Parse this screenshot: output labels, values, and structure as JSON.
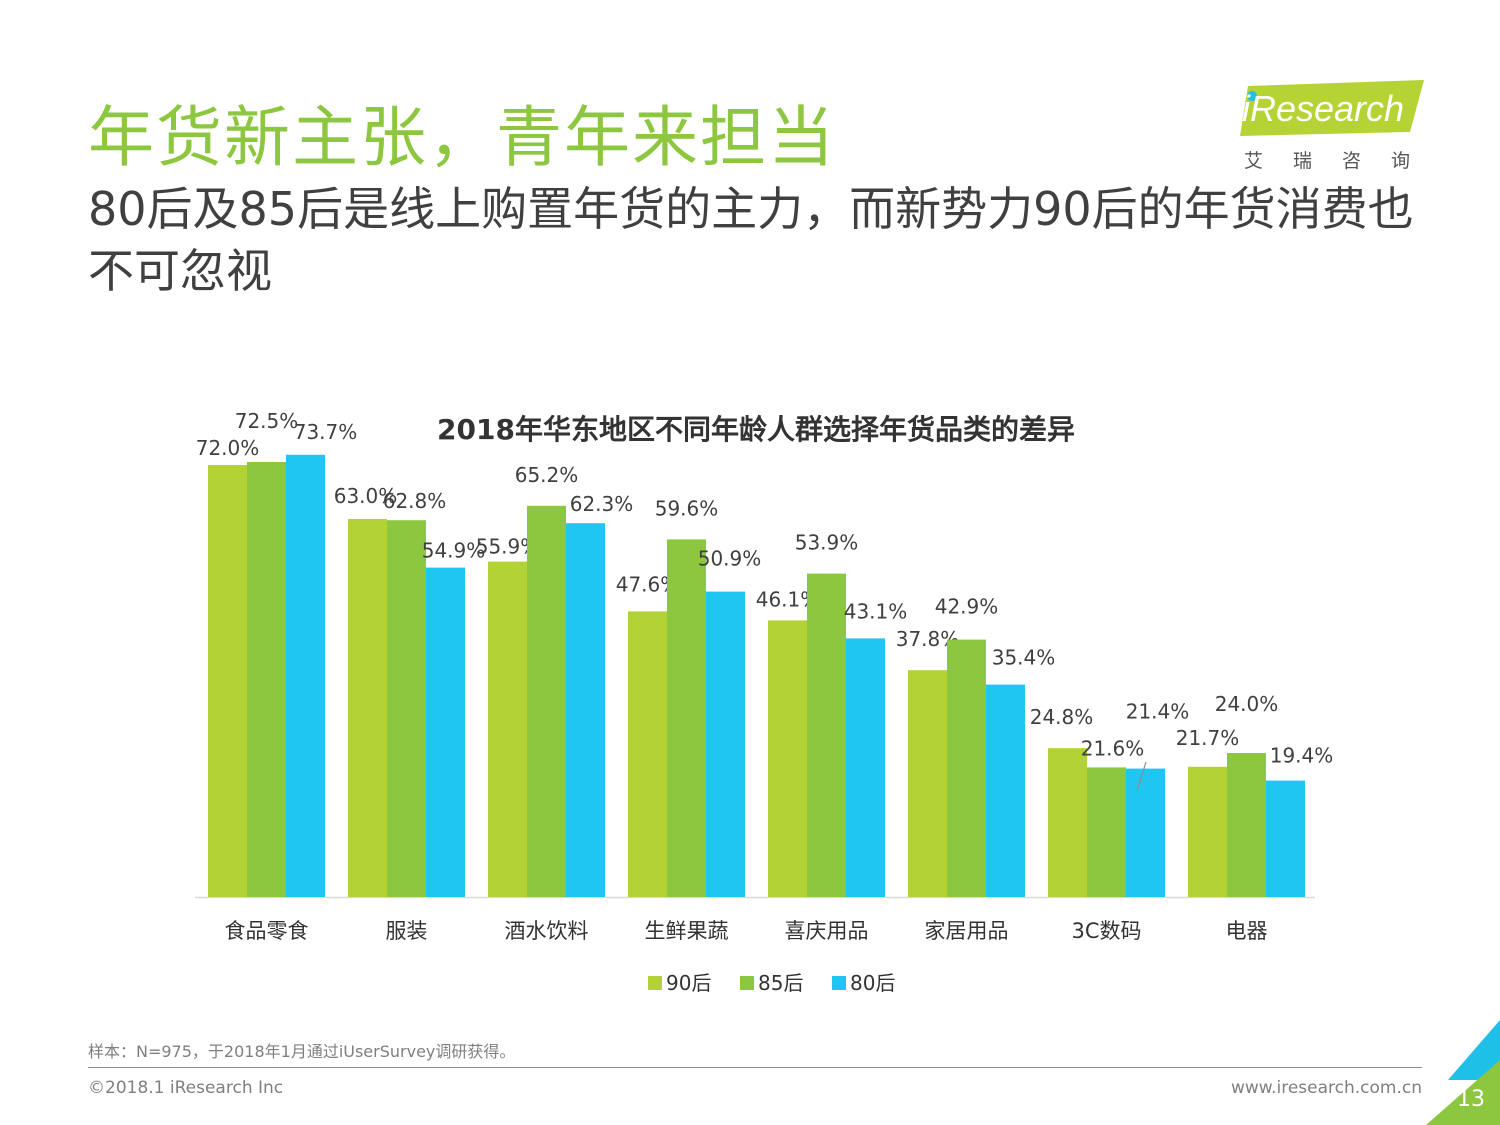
{
  "header": {
    "title": "年货新主张，青年来担当",
    "subtitle": "80后及85后是线上购置年货的主力，而新势力90后的年货消费也不可忽视"
  },
  "logo": {
    "wordmark": "iResearch",
    "chinese": "艾瑞咨询",
    "colors": {
      "mark": "#b5d334",
      "mark_accent": "#1ec0e8"
    }
  },
  "chart_data": {
    "type": "bar",
    "title": "2018年华东地区不同年龄人群选择年货品类的差异",
    "categories": [
      "食品零食",
      "服装",
      "酒水饮料",
      "生鲜果蔬",
      "喜庆用品",
      "家居用品",
      "3C数码",
      "电器"
    ],
    "series": [
      {
        "name": "90后",
        "color": "#b2d235",
        "values": [
          72.0,
          63.0,
          55.9,
          47.6,
          46.1,
          37.8,
          24.8,
          21.7
        ]
      },
      {
        "name": "85后",
        "color": "#8dc63f",
        "values": [
          72.5,
          62.8,
          65.2,
          59.6,
          53.9,
          42.9,
          21.6,
          24.0
        ]
      },
      {
        "name": "80后",
        "color": "#1fc7f0",
        "values": [
          73.7,
          54.9,
          62.3,
          50.9,
          43.1,
          35.4,
          21.4,
          19.4
        ]
      }
    ],
    "value_suffix": "%",
    "ylim": [
      0,
      80
    ],
    "grid": false,
    "legend_position": "bottom"
  },
  "footer": {
    "note": "样本：N=975，于2018年1月通过iUserSurvey调研获得。",
    "copyright": "©2018.1 iResearch Inc",
    "url": "www.iresearch.com.cn",
    "page_number": "13"
  }
}
